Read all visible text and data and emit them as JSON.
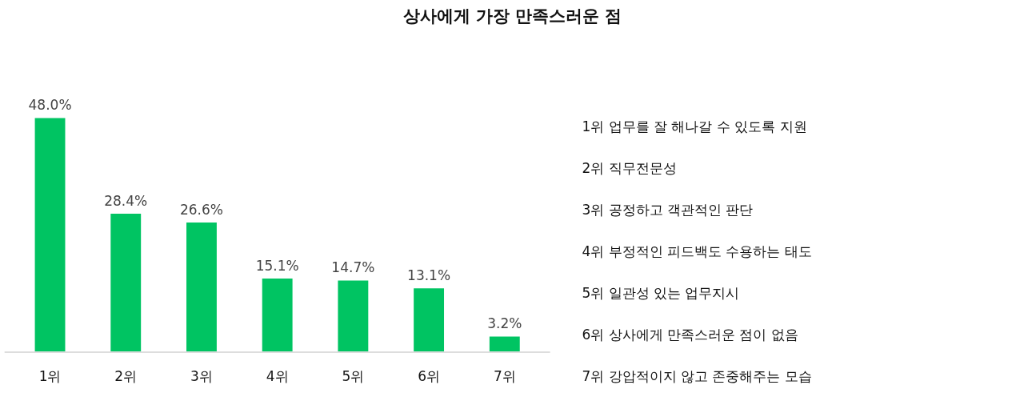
{
  "chart_data": {
    "type": "bar",
    "title": "상사에게 가장 만족스러운 점",
    "categories": [
      "1위",
      "2위",
      "3위",
      "4위",
      "5위",
      "6위",
      "7위"
    ],
    "values": [
      48.0,
      28.4,
      26.6,
      15.1,
      14.7,
      13.1,
      3.2
    ],
    "value_labels": [
      "48.0%",
      "28.4%",
      "26.6%",
      "15.1%",
      "14.7%",
      "13.1%",
      "3.2%"
    ],
    "color": "#00c462",
    "annotations": [
      "1위  업무를 잘 해나갈 수 있도록 지원",
      "2위  직무전문성",
      "3위  공정하고 객관적인 판단",
      "4위  부정적인 피드백도 수용하는 태도",
      "5위  일관성 있는 업무지시",
      "6위  상사에게 만족스러운 점이 없음",
      "7위  강압적이지 않고 존중해주는 모습"
    ],
    "grid": false
  }
}
